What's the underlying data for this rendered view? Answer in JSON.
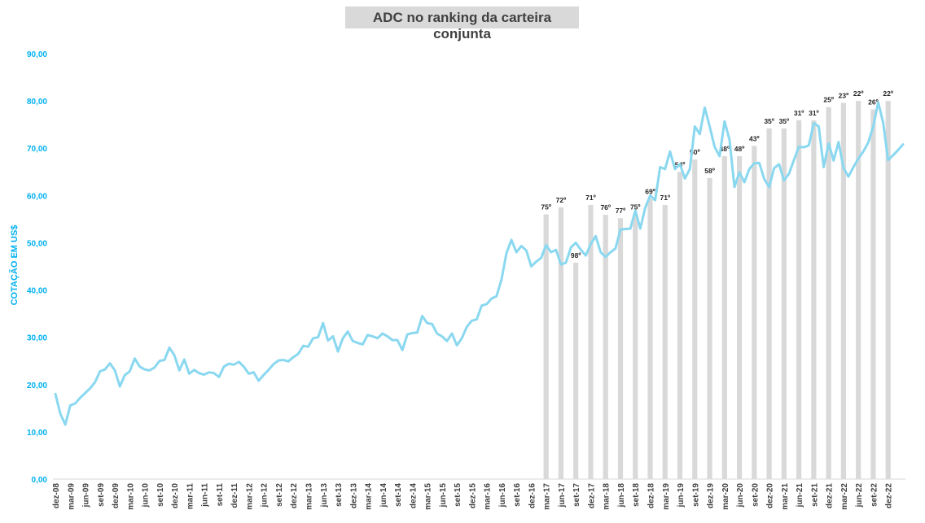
{
  "chart_data": {
    "type": "line",
    "title": "ADC no ranking da carteira conjunta",
    "ylabel": "COTAÇÃO EM US$",
    "xlabel": "",
    "ylim": [
      0,
      90
    ],
    "yticks": [
      "0,00",
      "10,00",
      "20,00",
      "30,00",
      "40,00",
      "50,00",
      "60,00",
      "70,00",
      "80,00",
      "90,00"
    ],
    "grid": false,
    "legend": "none",
    "x_tick_labels": [
      "dez-08",
      "mar-09",
      "jun-09",
      "set-09",
      "dez-09",
      "mar-10",
      "jun-10",
      "set-10",
      "dez-10",
      "mar-11",
      "jun-11",
      "set-11",
      "dez-11",
      "mar-12",
      "jun-12",
      "set-12",
      "dez-12",
      "mar-13",
      "jun-13",
      "set-13",
      "dez-13",
      "mar-14",
      "jun-14",
      "set-14",
      "dez-14",
      "mar-15",
      "jun-15",
      "set-15",
      "dez-15",
      "mar-16",
      "jun-16",
      "set-16",
      "dez-16",
      "mar-17",
      "jun-17",
      "set-17",
      "dez-17",
      "mar-18",
      "jun-18",
      "set-18",
      "dez-18",
      "mar-19",
      "jun-19",
      "set-19",
      "dez-19",
      "mar-20",
      "jun-20",
      "set-20",
      "dez-20",
      "mar-21",
      "jun-21",
      "set-21",
      "dez-21",
      "mar-22",
      "jun-22",
      "set-22",
      "dez-22"
    ],
    "series": [
      {
        "type": "line",
        "color": "#8ad8f0",
        "start": "dez-08",
        "frequency": "monthly",
        "values": [
          18.0,
          13.8,
          11.5,
          15.6,
          16.0,
          17.2,
          18.2,
          19.2,
          20.5,
          22.8,
          23.2,
          24.5,
          23.0,
          19.6,
          22.0,
          22.8,
          25.5,
          23.8,
          23.2,
          23.0,
          23.6,
          25.0,
          25.2,
          27.8,
          26.2,
          23.0,
          25.3,
          22.3,
          23.1,
          22.4,
          22.1,
          22.6,
          22.4,
          21.6,
          23.8,
          24.4,
          24.2,
          24.8,
          23.8,
          22.3,
          22.6,
          20.8,
          22.0,
          23.1,
          24.3,
          25.1,
          25.2,
          24.9,
          25.8,
          26.5,
          28.2,
          28.0,
          29.8,
          30.0,
          33.0,
          29.3,
          30.2,
          27.0,
          29.8,
          31.2,
          29.2,
          28.8,
          28.5,
          30.5,
          30.2,
          29.8,
          30.8,
          30.2,
          29.4,
          29.4,
          27.3,
          30.6,
          30.9,
          31.0,
          34.5,
          33.0,
          32.8,
          30.8,
          30.2,
          29.2,
          30.8,
          28.3,
          29.8,
          32.2,
          33.5,
          33.8,
          36.7,
          37.0,
          38.2,
          38.7,
          42.2,
          47.8,
          50.6,
          48.0,
          49.3,
          48.4,
          45.0,
          46.0,
          46.8,
          49.5,
          48.0,
          48.5,
          45.4,
          45.8,
          49.0,
          50.0,
          48.5,
          47.3,
          49.7,
          51.4,
          48.0,
          47.0,
          48.0,
          48.8,
          52.8,
          52.9,
          53.0,
          56.8,
          53.0,
          57.4,
          60.0,
          59.0,
          66.0,
          65.6,
          69.3,
          65.6,
          66.6,
          63.6,
          65.6,
          74.6,
          73.0,
          78.6,
          74.6,
          70.3,
          68.3,
          75.7,
          71.8,
          61.8,
          64.9,
          62.8,
          65.6,
          66.8,
          66.9,
          63.5,
          61.8,
          65.8,
          66.6,
          63.2,
          64.6,
          67.5,
          70.3,
          70.2,
          70.6,
          75.3,
          74.6,
          66.0,
          71.0,
          67.4,
          71.3,
          65.8,
          64.0,
          66.0,
          67.8,
          69.3,
          71.2,
          74.6,
          79.7,
          75.4,
          67.5,
          68.5,
          69.6,
          70.8
        ]
      }
    ],
    "bars": {
      "color": "#d9d9d9",
      "items": [
        {
          "x": "mar-17",
          "value": 56.0,
          "label": "75º"
        },
        {
          "x": "jun-17",
          "value": 57.5,
          "label": "72º"
        },
        {
          "x": "set-17",
          "value": 45.8,
          "label": "98º"
        },
        {
          "x": "dez-17",
          "value": 58.0,
          "label": "71º"
        },
        {
          "x": "mar-18",
          "value": 55.9,
          "label": "76º"
        },
        {
          "x": "jun-18",
          "value": 55.2,
          "label": "77º"
        },
        {
          "x": "set-18",
          "value": 56.0,
          "label": "75º"
        },
        {
          "x": "dez-18",
          "value": 59.3,
          "label": "69º"
        },
        {
          "x": "mar-19",
          "value": 58.0,
          "label": "71º"
        },
        {
          "x": "jun-19",
          "value": 65.0,
          "label": "54º"
        },
        {
          "x": "set-19",
          "value": 67.6,
          "label": "50º"
        },
        {
          "x": "dez-19",
          "value": 63.7,
          "label": "58º"
        },
        {
          "x": "mar-20",
          "value": 68.3,
          "label": "48º"
        },
        {
          "x": "jun-20",
          "value": 68.3,
          "label": "48º"
        },
        {
          "x": "set-20",
          "value": 70.5,
          "label": "43º"
        },
        {
          "x": "dez-20",
          "value": 74.2,
          "label": "35º"
        },
        {
          "x": "mar-21",
          "value": 74.2,
          "label": "35º"
        },
        {
          "x": "jun-21",
          "value": 75.9,
          "label": "31º"
        },
        {
          "x": "set-21",
          "value": 75.9,
          "label": "31º"
        },
        {
          "x": "dez-21",
          "value": 78.7,
          "label": "25º"
        },
        {
          "x": "mar-22",
          "value": 79.6,
          "label": "23º"
        },
        {
          "x": "jun-22",
          "value": 80.0,
          "label": "22º"
        },
        {
          "x": "set-22",
          "value": 78.2,
          "label": "26º"
        },
        {
          "x": "dez-22",
          "value": 80.0,
          "label": "22º"
        }
      ]
    }
  }
}
